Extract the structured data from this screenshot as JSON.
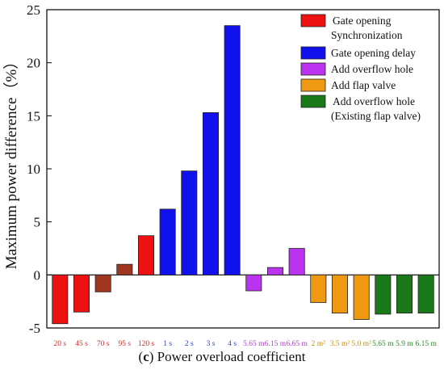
{
  "chart_data": {
    "type": "bar",
    "ylabel": "Maximum power difference（%）",
    "ylim": [
      -5,
      25
    ],
    "yticks": [
      -5,
      0,
      5,
      10,
      15,
      20,
      25
    ],
    "grid": false,
    "legend_position": "top-right",
    "categories": [
      "20 s",
      "45 s",
      "70 s",
      "95 s",
      "120 s",
      "1 s",
      "2 s",
      "3 s",
      "4 s",
      "5.65 m",
      "6.15 m",
      "6.65 m",
      "2 m²",
      "3.5 m²",
      "5.0 m²",
      "5.65 m",
      "5.9 m",
      "6.15 m"
    ],
    "category_colors": [
      "#cc2e2e",
      "#cc2e2e",
      "#cc2e2e",
      "#cc2e2e",
      "#cc2e2e",
      "#2e45cc",
      "#2e45cc",
      "#2e45cc",
      "#2e45cc",
      "#b040d0",
      "#b040d0",
      "#b040d0",
      "#c8901a",
      "#c8901a",
      "#c8901a",
      "#2e8a2e",
      "#2e8a2e",
      "#2e8a2e"
    ],
    "values": [
      -4.6,
      -3.5,
      -1.6,
      1.0,
      3.7,
      6.2,
      9.8,
      15.3,
      23.5,
      -1.5,
      0.7,
      2.5,
      -2.6,
      -3.6,
      -4.2,
      -3.7,
      -3.6,
      -3.6
    ],
    "bar_colors": [
      "#ee1111",
      "#ee1111",
      "#a03520",
      "#a03520",
      "#ee1111",
      "#1111ee",
      "#1111ee",
      "#1111ee",
      "#1111ee",
      "#bb33ee",
      "#bb33ee",
      "#bb33ee",
      "#ee9911",
      "#ee9911",
      "#ee9911",
      "#1a7a1a",
      "#1a7a1a",
      "#1a7a1a"
    ],
    "legend": [
      {
        "lines": [
          "Gate opening",
          "Synchronization"
        ],
        "color": "#ee1111"
      },
      {
        "lines": [
          "Gate opening delay"
        ],
        "color": "#1111ee"
      },
      {
        "lines": [
          "Add overflow hole"
        ],
        "color": "#bb33ee"
      },
      {
        "lines": [
          "Add flap valve"
        ],
        "color": "#ee9911"
      },
      {
        "lines": [
          "Add overflow hole",
          "(Existing flap valve)"
        ],
        "color": "#1a7a1a"
      }
    ]
  },
  "caption": {
    "letter": "c",
    "text": " Power overload coefficient"
  }
}
